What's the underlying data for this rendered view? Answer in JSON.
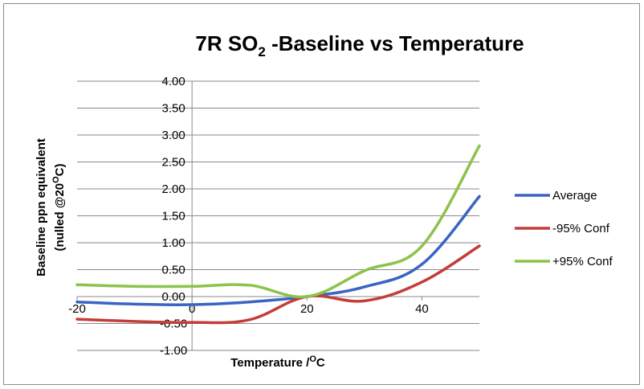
{
  "chart_data": {
    "type": "line",
    "title": {
      "main": "7R SO",
      "subscript": "2",
      "rest": " -Baseline vs Temperature"
    },
    "xlabel": {
      "main": "Temperature /",
      "superscript": "O",
      "rest": "C"
    },
    "ylabel": {
      "line1": "Baseline ppn equivalent",
      "line2_main": "(nulled @20",
      "line2_superscript": "O",
      "line2_rest": "C)"
    },
    "xlim": [
      -20,
      50
    ],
    "ylim": [
      -1.0,
      4.0
    ],
    "x_ticks": [
      -20,
      0,
      20,
      40
    ],
    "x_tick_labels": [
      "-20",
      "0",
      "20",
      "40"
    ],
    "y_ticks": [
      -1.0,
      -0.5,
      0.0,
      0.5,
      1.0,
      1.5,
      2.0,
      2.5,
      3.0,
      3.5,
      4.0
    ],
    "y_tick_labels": [
      "-1.00",
      "-0.50",
      "0.00",
      "0.50",
      "1.00",
      "1.50",
      "2.00",
      "2.50",
      "3.00",
      "3.50",
      "4.00"
    ],
    "grid": "horizontal",
    "legend_position": "right",
    "series": [
      {
        "name": "Average",
        "color": "#3a64c4",
        "x": [
          -20,
          -10,
          0,
          10,
          20,
          30,
          40,
          50
        ],
        "y": [
          -0.1,
          -0.14,
          -0.15,
          -0.1,
          0.0,
          0.18,
          0.6,
          1.86
        ]
      },
      {
        "name": "-95% Conf",
        "color": "#c33d3a",
        "x": [
          -20,
          -10,
          0,
          10,
          20,
          30,
          40,
          50
        ],
        "y": [
          -0.42,
          -0.46,
          -0.48,
          -0.43,
          0.0,
          -0.08,
          0.27,
          0.94
        ]
      },
      {
        "name": "+95% Conf",
        "color": "#8cc34a",
        "x": [
          -20,
          -10,
          0,
          10,
          20,
          30,
          40,
          50
        ],
        "y": [
          0.22,
          0.19,
          0.19,
          0.21,
          0.0,
          0.48,
          0.94,
          2.8
        ]
      }
    ]
  }
}
